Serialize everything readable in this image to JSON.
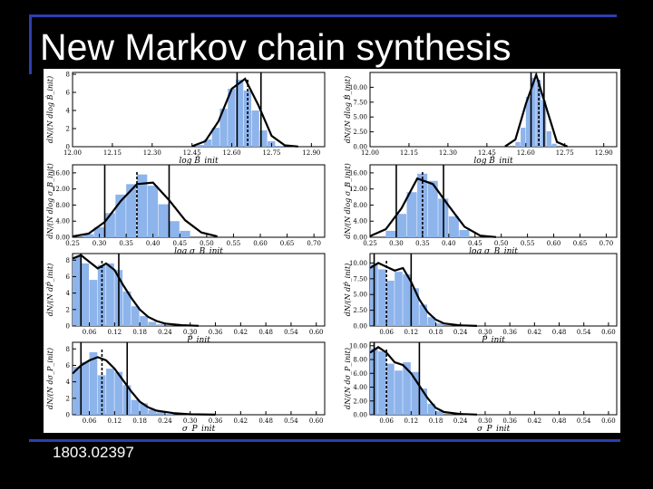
{
  "slide": {
    "title": "New Markov chain synthesis",
    "caption": "1803.02397"
  },
  "colors": {
    "bar": "#8eb4ec",
    "curve": "#000000",
    "background": "#ffffff"
  },
  "chart_data": [
    {
      "type": "bar",
      "panel": "left-1",
      "xlabel": "log B̂_init",
      "ylabel": "dN/(N dlog B̂_init)",
      "xticks": [
        12.0,
        12.15,
        12.3,
        12.45,
        12.6,
        12.75,
        12.9
      ],
      "xlim": [
        12.0,
        12.95
      ],
      "yticks": [
        0,
        2,
        4,
        6,
        8
      ],
      "ylim": [
        0,
        8.2
      ],
      "bins_x": [
        12.48,
        12.51,
        12.54,
        12.57,
        12.6,
        12.63,
        12.66,
        12.69,
        12.72,
        12.75,
        12.78
      ],
      "bins_y": [
        0.2,
        0.8,
        2.1,
        4.2,
        6.4,
        7.4,
        6.2,
        4.0,
        1.8,
        0.6,
        0.1
      ],
      "curve_x": [
        12.45,
        12.5,
        12.55,
        12.6,
        12.65,
        12.7,
        12.75,
        12.8,
        12.85
      ],
      "curve_y": [
        0.05,
        0.6,
        2.8,
        6.4,
        7.5,
        4.6,
        1.2,
        0.15,
        0.02
      ],
      "median": 12.66,
      "interval": [
        12.62,
        12.71
      ]
    },
    {
      "type": "bar",
      "panel": "right-1",
      "xlabel": "log B̂_init",
      "ylabel": "dN/(N dlog B̂_init)",
      "xticks": [
        12.0,
        12.15,
        12.3,
        12.45,
        12.6,
        12.75,
        12.9
      ],
      "xlim": [
        12.0,
        12.95
      ],
      "yticks": [
        0.0,
        2.5,
        5.0,
        7.5,
        10.0
      ],
      "ylim": [
        0,
        12.5
      ],
      "bins_x": [
        12.57,
        12.59,
        12.61,
        12.63,
        12.65,
        12.67,
        12.69,
        12.71
      ],
      "bins_y": [
        0.8,
        3.2,
        8.4,
        11.6,
        11.2,
        7.8,
        2.6,
        0.5
      ],
      "curve_x": [
        12.52,
        12.56,
        12.6,
        12.64,
        12.68,
        12.72,
        12.76
      ],
      "curve_y": [
        0.05,
        1.2,
        7.2,
        12.1,
        6.4,
        0.8,
        0.03
      ],
      "median": 12.65,
      "interval": [
        12.62,
        12.67
      ]
    },
    {
      "type": "bar",
      "panel": "left-2",
      "xlabel": "log σ_B_init",
      "ylabel": "dN/(N dlog σ_B_init)",
      "xticks": [
        0.25,
        0.3,
        0.35,
        0.4,
        0.45,
        0.5,
        0.55,
        0.6,
        0.65,
        0.7
      ],
      "xlim": [
        0.25,
        0.72
      ],
      "yticks": [
        0,
        4,
        8,
        12,
        16
      ],
      "ylim": [
        0,
        18
      ],
      "bins_x": [
        0.28,
        0.3,
        0.32,
        0.34,
        0.36,
        0.38,
        0.4,
        0.42,
        0.44,
        0.46
      ],
      "bins_y": [
        0.8,
        2.5,
        6.0,
        10.6,
        13.2,
        15.6,
        12.8,
        8.2,
        4.0,
        1.6
      ],
      "curve_x": [
        0.25,
        0.28,
        0.31,
        0.34,
        0.37,
        0.4,
        0.43,
        0.46,
        0.49,
        0.52
      ],
      "curve_y": [
        0.2,
        0.9,
        3.8,
        9.0,
        13.2,
        13.6,
        9.2,
        4.2,
        1.2,
        0.2
      ],
      "median": 0.37,
      "interval": [
        0.31,
        0.43
      ]
    },
    {
      "type": "bar",
      "panel": "right-2",
      "xlabel": "log σ_B_init",
      "ylabel": "dN/(N dlog σ_B_init)",
      "xticks": [
        0.25,
        0.3,
        0.35,
        0.4,
        0.45,
        0.5,
        0.55,
        0.6,
        0.65,
        0.7
      ],
      "xlim": [
        0.25,
        0.72
      ],
      "yticks": [
        0,
        4,
        8,
        12,
        16
      ],
      "ylim": [
        0,
        18
      ],
      "bins_x": [
        0.29,
        0.31,
        0.33,
        0.35,
        0.37,
        0.39,
        0.41,
        0.43
      ],
      "bins_y": [
        1.6,
        5.8,
        11.2,
        15.8,
        14.0,
        9.6,
        5.2,
        1.8
      ],
      "curve_x": [
        0.25,
        0.28,
        0.31,
        0.34,
        0.37,
        0.4,
        0.43,
        0.46,
        0.49
      ],
      "curve_y": [
        0.3,
        2.0,
        7.2,
        14.6,
        13.2,
        7.8,
        2.6,
        0.4,
        0.05
      ],
      "median": 0.35,
      "interval": [
        0.3,
        0.39
      ]
    },
    {
      "type": "bar",
      "panel": "left-3",
      "xlabel": "P̂_init",
      "ylabel": "dN/(N dP̂_init)",
      "xticks": [
        0.06,
        0.12,
        0.18,
        0.24,
        0.3,
        0.36,
        0.42,
        0.48,
        0.54,
        0.6
      ],
      "xlim": [
        0.02,
        0.62
      ],
      "yticks": [
        0,
        2,
        4,
        6,
        8
      ],
      "ylim": [
        0,
        8.8
      ],
      "bins_x": [
        0.03,
        0.05,
        0.07,
        0.09,
        0.11,
        0.13,
        0.15,
        0.17,
        0.19,
        0.21,
        0.23
      ],
      "bins_y": [
        8.4,
        7.6,
        5.6,
        7.4,
        7.6,
        6.8,
        4.2,
        2.4,
        1.2,
        0.5,
        0.2
      ],
      "curve_x": [
        0.02,
        0.04,
        0.06,
        0.08,
        0.1,
        0.12,
        0.14,
        0.16,
        0.18,
        0.2,
        0.22,
        0.24,
        0.28,
        0.32
      ],
      "curve_y": [
        8.2,
        8.6,
        7.8,
        7.0,
        7.6,
        6.8,
        5.0,
        3.4,
        2.0,
        1.1,
        0.6,
        0.3,
        0.1,
        0.02
      ],
      "median": 0.09,
      "interval": [
        0.04,
        0.13
      ]
    },
    {
      "type": "bar",
      "panel": "right-3",
      "xlabel": "P̂_init",
      "ylabel": "dN/(N dP̂_init)",
      "xticks": [
        0.06,
        0.12,
        0.18,
        0.24,
        0.3,
        0.36,
        0.42,
        0.48,
        0.54,
        0.6
      ],
      "xlim": [
        0.02,
        0.62
      ],
      "yticks": [
        0.0,
        2.5,
        5.0,
        7.5,
        10.0
      ],
      "ylim": [
        0,
        11.5
      ],
      "bins_x": [
        0.03,
        0.05,
        0.07,
        0.09,
        0.11,
        0.13,
        0.15,
        0.17,
        0.19
      ],
      "bins_y": [
        9.8,
        9.0,
        7.2,
        8.6,
        8.2,
        6.0,
        3.4,
        1.4,
        0.4
      ],
      "curve_x": [
        0.02,
        0.04,
        0.06,
        0.08,
        0.1,
        0.12,
        0.14,
        0.16,
        0.18,
        0.2,
        0.24,
        0.28
      ],
      "curve_y": [
        9.2,
        10.0,
        9.4,
        8.8,
        9.2,
        7.0,
        4.2,
        2.2,
        1.0,
        0.4,
        0.1,
        0.02
      ],
      "median": 0.06,
      "interval": [
        0.03,
        0.12
      ]
    },
    {
      "type": "bar",
      "panel": "left-4",
      "xlabel": "σ_P_init",
      "ylabel": "dN/(N dσ_P_init)",
      "xticks": [
        0.06,
        0.12,
        0.18,
        0.24,
        0.3,
        0.36,
        0.42,
        0.48,
        0.54,
        0.6
      ],
      "xlim": [
        0.02,
        0.62
      ],
      "yticks": [
        0,
        2,
        4,
        6,
        8
      ],
      "ylim": [
        0,
        8.8
      ],
      "bins_x": [
        0.03,
        0.05,
        0.07,
        0.09,
        0.11,
        0.13,
        0.15,
        0.17,
        0.19,
        0.21,
        0.23,
        0.25
      ],
      "bins_y": [
        5.8,
        6.4,
        7.6,
        4.8,
        5.6,
        5.2,
        3.6,
        1.8,
        1.4,
        0.6,
        0.3,
        0.1
      ],
      "curve_x": [
        0.02,
        0.04,
        0.06,
        0.08,
        0.1,
        0.12,
        0.14,
        0.16,
        0.18,
        0.2,
        0.22,
        0.26,
        0.3,
        0.36
      ],
      "curve_y": [
        5.0,
        6.0,
        6.6,
        7.0,
        6.6,
        5.6,
        4.2,
        2.8,
        1.6,
        0.9,
        0.5,
        0.2,
        0.06,
        0.01
      ],
      "median": 0.09,
      "interval": [
        0.04,
        0.15
      ]
    },
    {
      "type": "bar",
      "panel": "right-4",
      "xlabel": "σ_P_init",
      "ylabel": "dN/(N dσ_P_init)",
      "xticks": [
        0.06,
        0.12,
        0.18,
        0.24,
        0.3,
        0.36,
        0.42,
        0.48,
        0.54,
        0.6
      ],
      "xlim": [
        0.02,
        0.62
      ],
      "yticks": [
        0,
        2,
        4,
        6,
        8,
        10
      ],
      "ylim": [
        0,
        10.5
      ],
      "bins_x": [
        0.03,
        0.05,
        0.07,
        0.09,
        0.11,
        0.13,
        0.15,
        0.17,
        0.19
      ],
      "bins_y": [
        9.6,
        9.2,
        7.4,
        6.4,
        7.6,
        6.2,
        3.8,
        1.6,
        0.5
      ],
      "curve_x": [
        0.02,
        0.04,
        0.06,
        0.08,
        0.1,
        0.12,
        0.14,
        0.16,
        0.18,
        0.2,
        0.24,
        0.28
      ],
      "curve_y": [
        9.0,
        9.8,
        9.0,
        7.6,
        7.2,
        6.0,
        4.2,
        2.4,
        1.0,
        0.4,
        0.1,
        0.02
      ],
      "median": 0.06,
      "interval": [
        0.03,
        0.14
      ]
    }
  ]
}
